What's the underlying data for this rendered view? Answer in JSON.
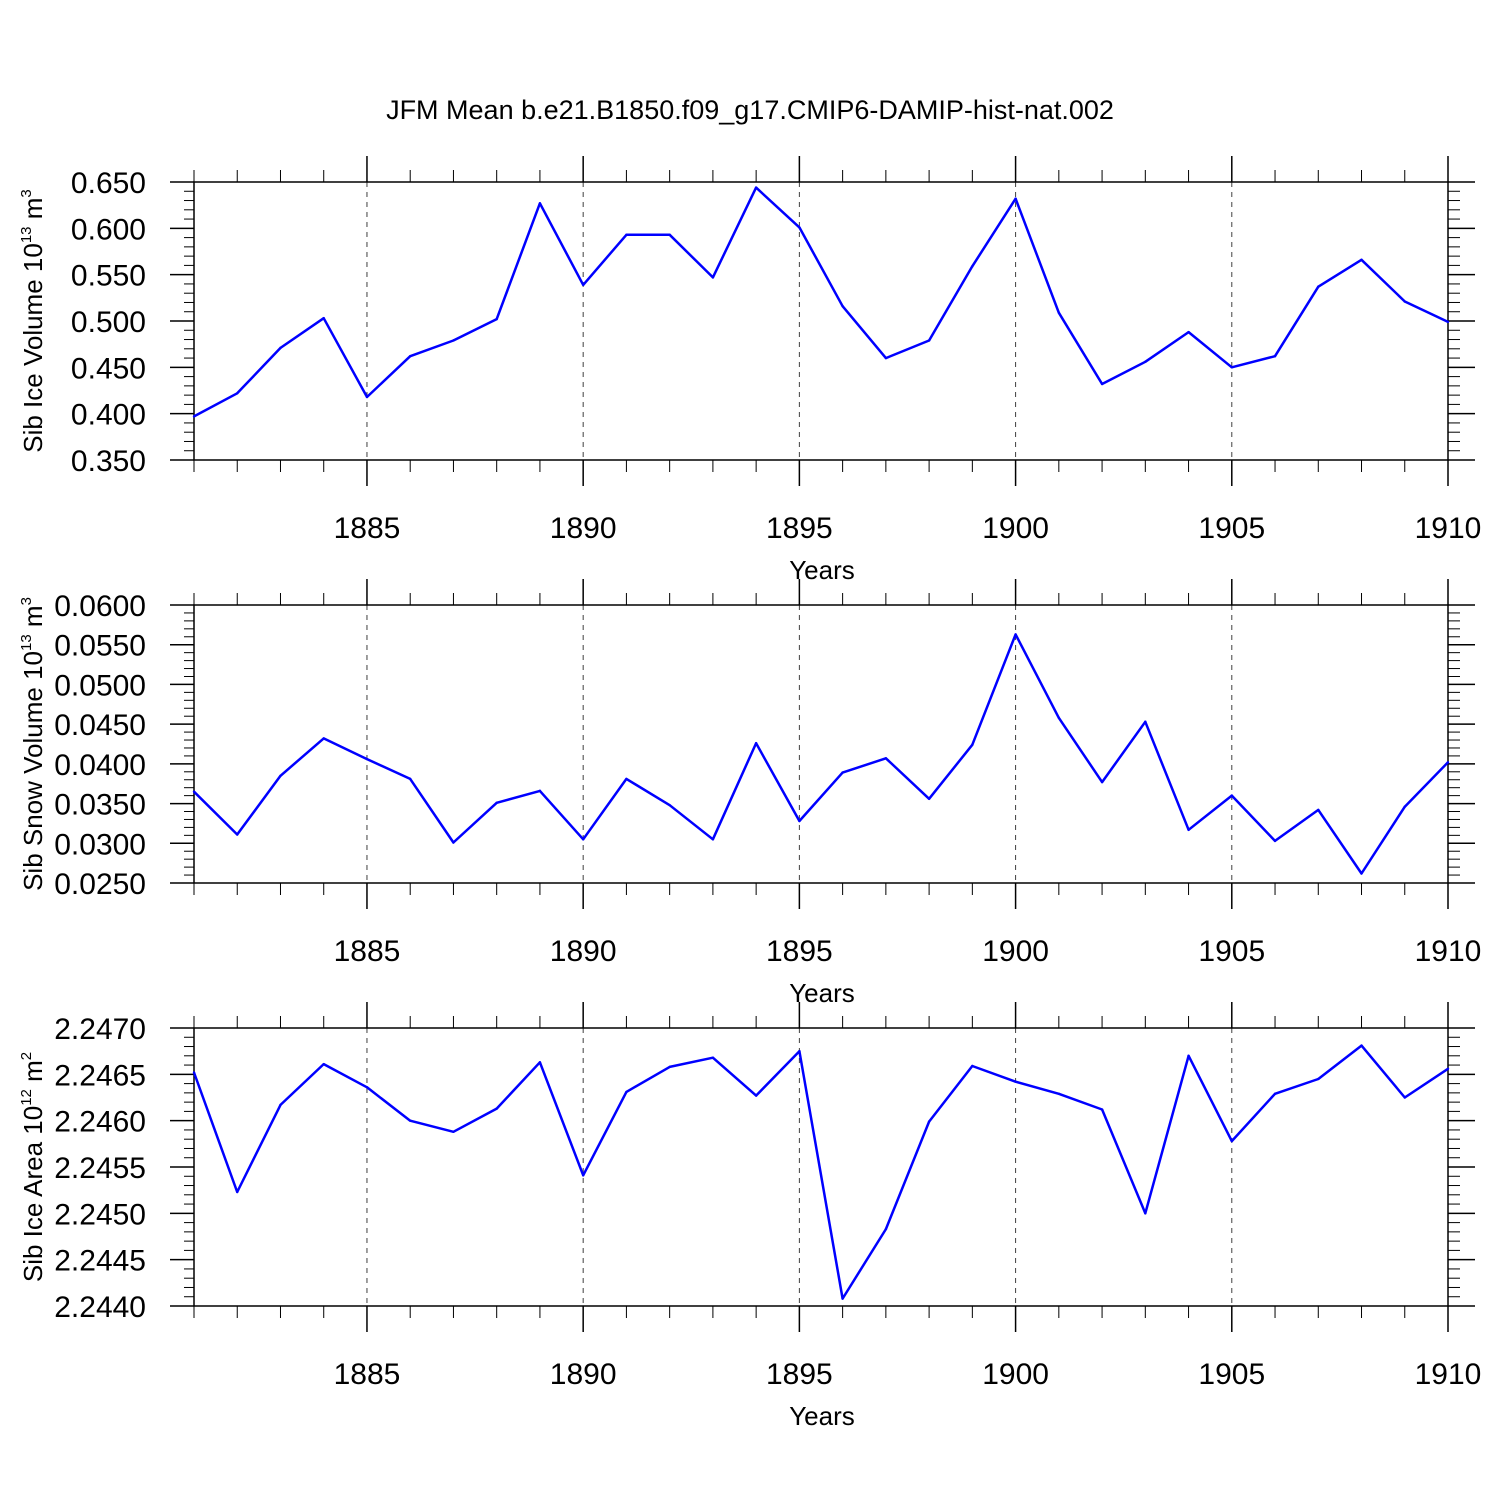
{
  "title": "JFM Mean b.e21.B1850.f09_g17.CMIP6-DAMIP-hist-nat.002",
  "colors": {
    "line": "#0000ff",
    "axis": "#000000",
    "grid": "#000000"
  },
  "chart_data": [
    {
      "type": "line",
      "xlabel": "Years",
      "ylabel": {
        "main": "Sib Ice Volume 10",
        "exp": "13",
        "unit": " m",
        "unit_exp": "3"
      },
      "xlim": [
        1881,
        1910
      ],
      "ylim": [
        0.35,
        0.65
      ],
      "x_ticks": [
        1885,
        1890,
        1895,
        1900,
        1905,
        1910
      ],
      "y_ticks": [
        "0.350",
        "0.400",
        "0.450",
        "0.500",
        "0.550",
        "0.600",
        "0.650"
      ],
      "grid": "vertical dashed at major x ticks",
      "x": [
        1881,
        1882,
        1883,
        1884,
        1885,
        1886,
        1887,
        1888,
        1889,
        1890,
        1891,
        1892,
        1893,
        1894,
        1895,
        1896,
        1897,
        1898,
        1899,
        1900,
        1901,
        1902,
        1903,
        1904,
        1905,
        1906,
        1907,
        1908,
        1909,
        1910
      ],
      "values": [
        0.397,
        0.422,
        0.471,
        0.503,
        0.418,
        0.462,
        0.479,
        0.502,
        0.627,
        0.539,
        0.593,
        0.593,
        0.547,
        0.644,
        0.601,
        0.516,
        0.46,
        0.479,
        0.559,
        0.632,
        0.509,
        0.432,
        0.456,
        0.488,
        0.45,
        0.462,
        0.537,
        0.566,
        0.521,
        0.499
      ]
    },
    {
      "type": "line",
      "xlabel": "Years",
      "ylabel": {
        "main": "Sib Snow Volume 10",
        "exp": "13",
        "unit": " m",
        "unit_exp": "3"
      },
      "xlim": [
        1881,
        1910
      ],
      "ylim": [
        0.025,
        0.06
      ],
      "x_ticks": [
        1885,
        1890,
        1895,
        1900,
        1905,
        1910
      ],
      "y_ticks": [
        "0.0250",
        "0.0300",
        "0.0350",
        "0.0400",
        "0.0450",
        "0.0500",
        "0.0550",
        "0.0600"
      ],
      "grid": "vertical dashed at major x ticks",
      "x": [
        1881,
        1882,
        1883,
        1884,
        1885,
        1886,
        1887,
        1888,
        1889,
        1890,
        1891,
        1892,
        1893,
        1894,
        1895,
        1896,
        1897,
        1898,
        1899,
        1900,
        1901,
        1902,
        1903,
        1904,
        1905,
        1906,
        1907,
        1908,
        1909,
        1910
      ],
      "values": [
        0.0365,
        0.0311,
        0.0385,
        0.0432,
        0.0406,
        0.0381,
        0.0301,
        0.0351,
        0.0366,
        0.0305,
        0.0381,
        0.0348,
        0.0305,
        0.0426,
        0.0328,
        0.0389,
        0.0407,
        0.0356,
        0.0424,
        0.0563,
        0.0458,
        0.0377,
        0.0453,
        0.0317,
        0.036,
        0.0303,
        0.0342,
        0.0262,
        0.0346,
        0.0402
      ]
    },
    {
      "type": "line",
      "xlabel": "Years",
      "ylabel": {
        "main": "Sib Ice Area 10",
        "exp": "12",
        "unit": " m",
        "unit_exp": "2"
      },
      "xlim": [
        1881,
        1910
      ],
      "ylim": [
        2.244,
        2.247
      ],
      "x_ticks": [
        1885,
        1890,
        1895,
        1900,
        1905,
        1910
      ],
      "y_ticks": [
        "2.2440",
        "2.2445",
        "2.2450",
        "2.2455",
        "2.2460",
        "2.2465",
        "2.2470"
      ],
      "grid": "vertical dashed at major x ticks",
      "x": [
        1881,
        1882,
        1883,
        1884,
        1885,
        1886,
        1887,
        1888,
        1889,
        1890,
        1891,
        1892,
        1893,
        1894,
        1895,
        1896,
        1897,
        1898,
        1899,
        1900,
        1901,
        1902,
        1903,
        1904,
        1905,
        1906,
        1907,
        1908,
        1909,
        1910
      ],
      "values": [
        2.24652,
        2.24523,
        2.24617,
        2.24661,
        2.24636,
        2.246,
        2.24588,
        2.24613,
        2.24663,
        2.24541,
        2.24631,
        2.24658,
        2.24668,
        2.24627,
        2.24675,
        2.24408,
        2.24483,
        2.24599,
        2.24659,
        2.24642,
        2.24629,
        2.24612,
        2.245,
        2.2467,
        2.24578,
        2.24629,
        2.24645,
        2.24681,
        2.24625,
        2.24656
      ]
    }
  ]
}
